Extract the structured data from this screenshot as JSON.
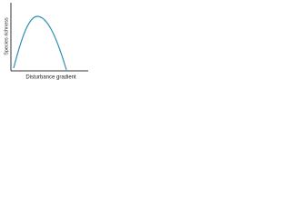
{
  "y_label": "Species richness",
  "x_label": "Disturbance gradient"
}
